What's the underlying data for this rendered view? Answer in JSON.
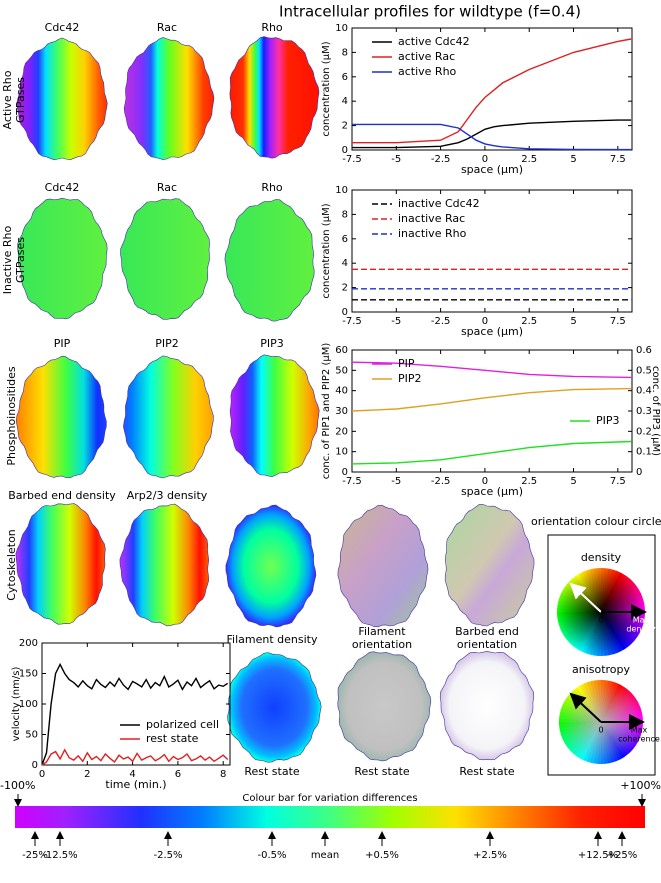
{
  "title": "Intracellular profiles for wildtype (f=0.4)",
  "row_labels": [
    [
      "Active Rho",
      "GTPases"
    ],
    [
      "Inactive Rho",
      "GTPases"
    ],
    [
      "Phosphoinositides"
    ],
    [
      "Cytoskeleton"
    ]
  ],
  "panels": {
    "row1": [
      "Cdc42",
      "Rac",
      "Rho"
    ],
    "row2": [
      "Cdc42",
      "Rac",
      "Rho"
    ],
    "row3": [
      "PIP",
      "PIP2",
      "PIP3"
    ],
    "row4": [
      "Barbed end density",
      "Arp2/3 density"
    ],
    "row5": [
      [
        "Filament density"
      ],
      [
        "Filament",
        "orientation"
      ],
      [
        "Barbed end",
        "orientation"
      ]
    ],
    "rest": [
      "Rest state",
      "Rest state",
      "Rest state"
    ]
  },
  "chart_data": [
    {
      "type": "line",
      "xlabel": "space (µm)",
      "ylabel": "concentration (µM)",
      "x": [
        -7.5,
        -5,
        -2.5,
        -1.5,
        -1,
        -0.5,
        0,
        0.5,
        1,
        2.5,
        5,
        7.5,
        8.25
      ],
      "xlim": [
        -7.5,
        8.3
      ],
      "xticks": [
        -7.5,
        -5,
        -2.5,
        0,
        2.5,
        5,
        7.5
      ],
      "ylim": [
        0,
        10
      ],
      "yticks": [
        0,
        2,
        4,
        6,
        8,
        10
      ],
      "legend": "upper left",
      "series": [
        {
          "name": "active Cdc42",
          "color": "#000000",
          "values": [
            0.2,
            0.2,
            0.3,
            0.6,
            0.9,
            1.3,
            1.7,
            1.9,
            2.0,
            2.2,
            2.35,
            2.45,
            2.45
          ]
        },
        {
          "name": "active Rac",
          "color": "#e02020",
          "values": [
            0.6,
            0.6,
            0.8,
            1.5,
            2.5,
            3.5,
            4.3,
            4.9,
            5.5,
            6.6,
            8.0,
            8.9,
            9.1
          ]
        },
        {
          "name": "active Rho",
          "color": "#1f2fd0",
          "values": [
            2.1,
            2.1,
            2.1,
            1.8,
            1.3,
            0.8,
            0.5,
            0.35,
            0.25,
            0.1,
            0.05,
            0.03,
            0.03
          ]
        }
      ]
    },
    {
      "type": "line",
      "xlabel": "space (µm)",
      "ylabel": "concentration (µM)",
      "x": [
        -7.5,
        8.25
      ],
      "xlim": [
        -7.5,
        8.3
      ],
      "xticks": [
        -7.5,
        -5,
        -2.5,
        0,
        2.5,
        5,
        7.5
      ],
      "ylim": [
        0,
        10
      ],
      "yticks": [
        0,
        2,
        4,
        6,
        8,
        10
      ],
      "legend": "upper left",
      "series": [
        {
          "name": "inactive Cdc42",
          "color": "#000000",
          "linestyle": "dashed",
          "values": [
            1.0,
            1.0
          ]
        },
        {
          "name": "inactive Rac",
          "color": "#e02020",
          "linestyle": "dashed",
          "values": [
            3.5,
            3.5
          ]
        },
        {
          "name": "inactive Rho",
          "color": "#1f2fd0",
          "linestyle": "dashed",
          "values": [
            1.9,
            1.9
          ]
        }
      ]
    },
    {
      "type": "line",
      "xlabel": "space (µm)",
      "ylabel": "conc. of PIP1 and PIP2 (µM)",
      "y2label": "conc. of PIP3 (µM)",
      "x": [
        -7.5,
        -5,
        -2.5,
        0,
        2.5,
        5,
        8.25
      ],
      "xlim": [
        -7.5,
        8.3
      ],
      "xticks": [
        -7.5,
        -5,
        -2.5,
        0,
        2.5,
        5,
        7.5
      ],
      "ylim": [
        0,
        60
      ],
      "yticks": [
        0,
        10,
        20,
        30,
        40,
        50,
        60
      ],
      "y2lim": [
        0,
        0.6
      ],
      "y2ticks": [
        0,
        0.1,
        0.2,
        0.3,
        0.4,
        0.5,
        0.6
      ],
      "legend": "upper left",
      "series": [
        {
          "name": "PIP",
          "color": "#e020e0",
          "values": [
            54,
            53.5,
            52,
            50,
            48,
            47,
            46.5
          ]
        },
        {
          "name": "PIP2",
          "color": "#e0a020",
          "values": [
            30,
            31,
            33.5,
            36.5,
            39,
            40.5,
            41
          ]
        },
        {
          "name": "PIP3",
          "color": "#20e020",
          "axis": "y2",
          "values": [
            0.04,
            0.045,
            0.06,
            0.09,
            0.12,
            0.14,
            0.15
          ]
        }
      ]
    },
    {
      "type": "line",
      "xlabel": "time (min.)",
      "ylabel": "velocity (nm/s)",
      "x": [
        0,
        0.2,
        0.4,
        0.6,
        0.8,
        1.0,
        1.2,
        1.4,
        1.6,
        1.8,
        2.0,
        2.2,
        2.4,
        2.6,
        2.8,
        3.0,
        3.2,
        3.4,
        3.6,
        3.8,
        4.0,
        4.2,
        4.4,
        4.6,
        4.8,
        5.0,
        5.2,
        5.4,
        5.6,
        5.8,
        6.0,
        6.2,
        6.4,
        6.6,
        6.8,
        7.0,
        7.2,
        7.4,
        7.6,
        7.8,
        8.0,
        8.2
      ],
      "xlim": [
        0,
        8.3
      ],
      "xticks": [
        0,
        2,
        4,
        6,
        8
      ],
      "ylim": [
        0,
        200
      ],
      "yticks": [
        0,
        50,
        100,
        150,
        200
      ],
      "legend": "lower right",
      "series": [
        {
          "name": "polarized cell",
          "color": "#000000",
          "values": [
            0,
            20,
            100,
            150,
            165,
            150,
            140,
            135,
            128,
            138,
            130,
            125,
            140,
            132,
            127,
            136,
            129,
            142,
            131,
            124,
            137,
            133,
            128,
            140,
            126,
            135,
            130,
            145,
            128,
            133,
            139,
            124,
            136,
            130,
            142,
            127,
            133,
            138,
            125,
            131,
            129,
            134
          ]
        },
        {
          "name": "rest state",
          "color": "#e02020",
          "values": [
            0,
            5,
            18,
            22,
            10,
            25,
            12,
            8,
            15,
            6,
            20,
            9,
            14,
            7,
            18,
            11,
            5,
            16,
            10,
            13,
            6,
            19,
            8,
            12,
            15,
            7,
            11,
            17,
            6,
            14,
            9,
            12,
            18,
            7,
            10,
            15,
            8,
            13,
            6,
            11,
            16,
            9
          ]
        }
      ]
    }
  ],
  "colorbar": {
    "title": "Colour bar for variation differences",
    "ends": [
      "-100%",
      "+100%"
    ],
    "markers": [
      "-25%",
      "-12.5%",
      "-2.5%",
      "-0.5%",
      "mean",
      "+0.5%",
      "+2.5%",
      "+12.5%",
      "+25%"
    ]
  },
  "orientation": {
    "title": "orientation colour circles:",
    "circles": [
      {
        "name": "density",
        "zero": "0",
        "max": [
          "Max",
          "density"
        ]
      },
      {
        "name": "anisotropy",
        "zero": "0",
        "max": [
          "Max",
          "coherence"
        ]
      }
    ]
  }
}
